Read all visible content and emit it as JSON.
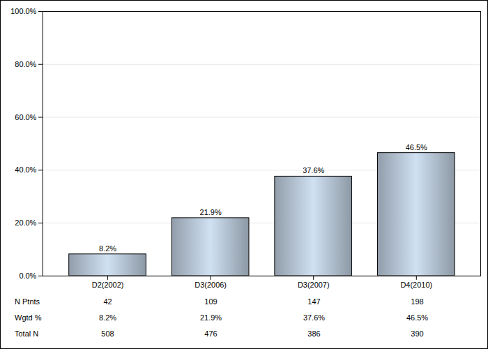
{
  "chart_data": {
    "type": "bar",
    "categories": [
      "D2(2002)",
      "D3(2006)",
      "D3(2007)",
      "D4(2010)"
    ],
    "values": [
      8.2,
      21.9,
      37.6,
      46.5
    ],
    "value_labels": [
      "8.2%",
      "21.9%",
      "37.6%",
      "46.5%"
    ],
    "data_labels": true,
    "color": "#aebccb",
    "ylim": [
      0,
      100
    ],
    "yticks": [
      {
        "value": 0,
        "label": "0.0%"
      },
      {
        "value": 20,
        "label": "20.0%"
      },
      {
        "value": 40,
        "label": "40.0%"
      },
      {
        "value": 60,
        "label": "60.0%"
      },
      {
        "value": 80,
        "label": "80.0%"
      },
      {
        "value": 100,
        "label": "100.0%"
      }
    ],
    "grid": true,
    "table_rows": [
      {
        "label": "N Ptnts",
        "cells": [
          "42",
          "109",
          "147",
          "198"
        ]
      },
      {
        "label": "Wgtd %",
        "cells": [
          "8.2%",
          "21.9%",
          "37.6%",
          "46.5%"
        ]
      },
      {
        "label": "Total N",
        "cells": [
          "508",
          "476",
          "386",
          "390"
        ]
      }
    ]
  }
}
